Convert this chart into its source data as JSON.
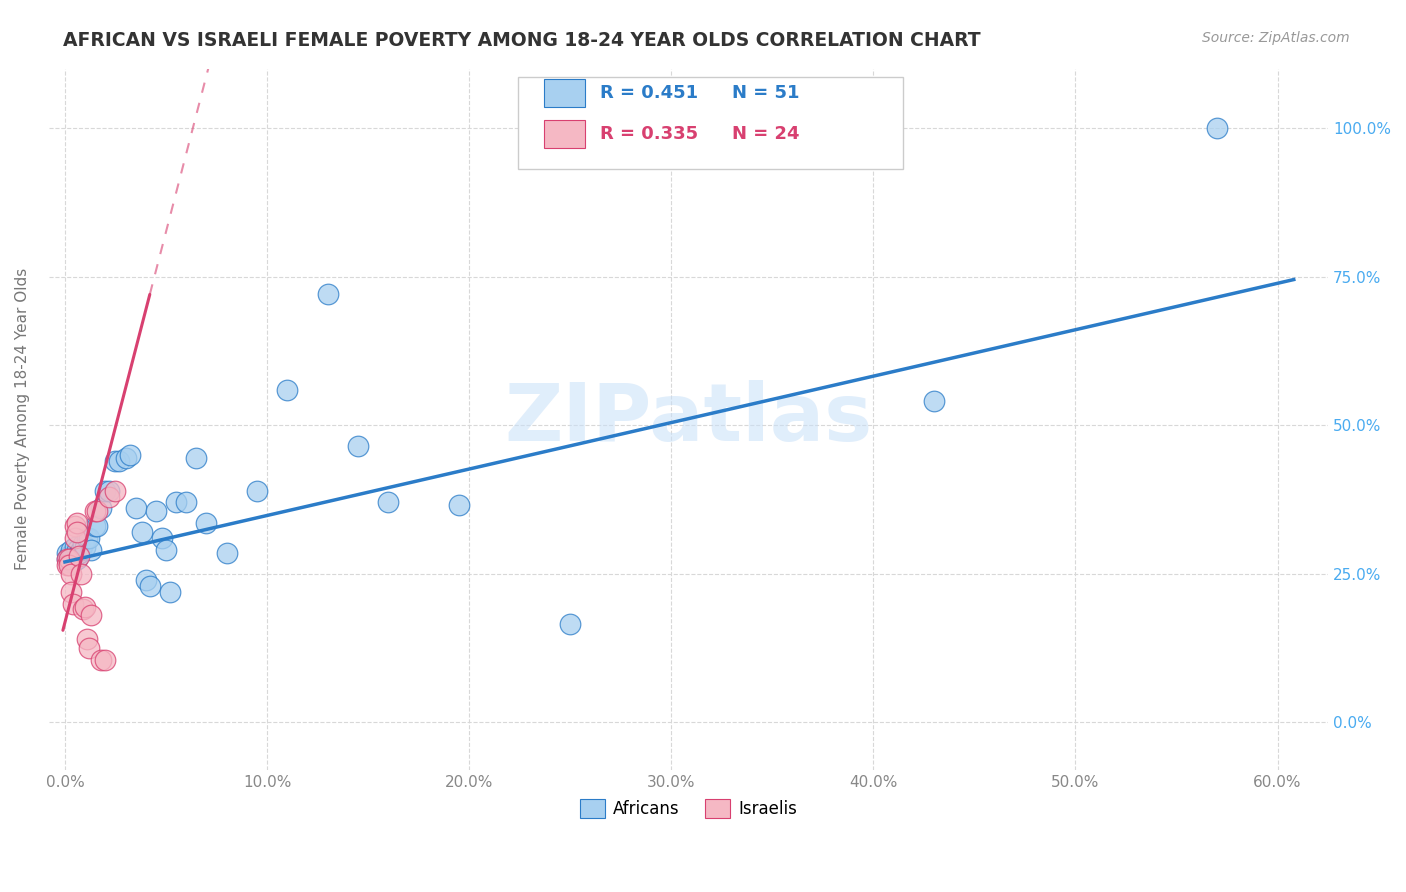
{
  "title": "AFRICAN VS ISRAELI FEMALE POVERTY AMONG 18-24 YEAR OLDS CORRELATION CHART",
  "source": "Source: ZipAtlas.com",
  "xlabel_tick_vals": [
    0.0,
    0.1,
    0.2,
    0.3,
    0.4,
    0.5,
    0.6
  ],
  "ylabel_tick_vals": [
    0.0,
    0.25,
    0.5,
    0.75,
    1.0
  ],
  "xlim": [
    -0.008,
    0.625
  ],
  "ylim": [
    -0.08,
    1.1
  ],
  "africans_color": "#A8D0F0",
  "israelis_color": "#F5B8C4",
  "africans_R": 0.451,
  "africans_N": 51,
  "israelis_R": 0.335,
  "israelis_N": 24,
  "africans_x": [
    0.001,
    0.001,
    0.002,
    0.002,
    0.003,
    0.003,
    0.004,
    0.004,
    0.005,
    0.005,
    0.006,
    0.006,
    0.007,
    0.007,
    0.008,
    0.009,
    0.01,
    0.011,
    0.012,
    0.013,
    0.015,
    0.016,
    0.018,
    0.02,
    0.022,
    0.025,
    0.027,
    0.03,
    0.032,
    0.035,
    0.038,
    0.04,
    0.042,
    0.045,
    0.048,
    0.05,
    0.052,
    0.055,
    0.06,
    0.065,
    0.07,
    0.08,
    0.095,
    0.11,
    0.13,
    0.145,
    0.16,
    0.195,
    0.25,
    0.43,
    0.57
  ],
  "africans_y": [
    0.285,
    0.275,
    0.28,
    0.27,
    0.29,
    0.275,
    0.28,
    0.27,
    0.295,
    0.28,
    0.275,
    0.29,
    0.285,
    0.285,
    0.29,
    0.3,
    0.295,
    0.31,
    0.31,
    0.29,
    0.33,
    0.33,
    0.36,
    0.39,
    0.39,
    0.44,
    0.44,
    0.445,
    0.45,
    0.36,
    0.32,
    0.24,
    0.23,
    0.355,
    0.31,
    0.29,
    0.22,
    0.37,
    0.37,
    0.445,
    0.335,
    0.285,
    0.39,
    0.56,
    0.72,
    0.465,
    0.37,
    0.365,
    0.165,
    0.54,
    1.0
  ],
  "israelis_x": [
    0.001,
    0.001,
    0.002,
    0.002,
    0.003,
    0.003,
    0.004,
    0.005,
    0.005,
    0.006,
    0.006,
    0.007,
    0.008,
    0.009,
    0.01,
    0.011,
    0.012,
    0.013,
    0.015,
    0.016,
    0.018,
    0.02,
    0.022,
    0.025
  ],
  "israelis_y": [
    0.275,
    0.265,
    0.275,
    0.265,
    0.25,
    0.22,
    0.2,
    0.33,
    0.31,
    0.335,
    0.32,
    0.28,
    0.25,
    0.19,
    0.195,
    0.14,
    0.125,
    0.18,
    0.355,
    0.355,
    0.105,
    0.105,
    0.38,
    0.39
  ],
  "watermark": "ZIPatlas",
  "legend_label_blue": "Africans",
  "legend_label_pink": "Israelis",
  "ylabel": "Female Poverty Among 18-24 Year Olds",
  "grid_color": "#d8d8d8",
  "trendline_blue_color": "#2B7CC8",
  "trendline_pink_color": "#D84070",
  "right_label_color": "#4AABF0",
  "tick_label_color": "#888888",
  "title_color": "#333333",
  "source_color": "#999999"
}
